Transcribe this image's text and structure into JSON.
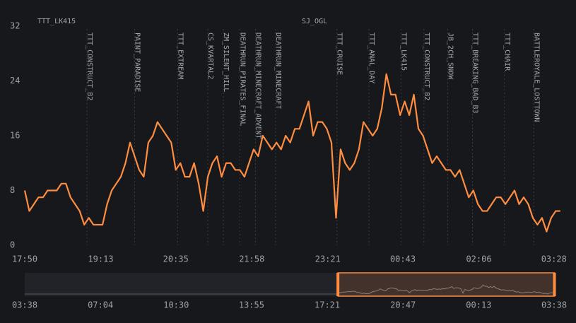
{
  "chart_data": {
    "type": "line",
    "top_labels": [
      "TTT_LK415",
      "SJ_OGL"
    ],
    "x": [
      "17:50",
      "17:55",
      "18:00",
      "18:05",
      "18:10",
      "18:15",
      "18:20",
      "18:25",
      "18:30",
      "18:35",
      "18:40",
      "18:45",
      "18:50",
      "18:55",
      "19:00",
      "19:05",
      "19:10",
      "19:15",
      "19:20",
      "19:25",
      "19:30",
      "19:35",
      "19:40",
      "19:45",
      "19:50",
      "19:55",
      "20:00",
      "20:05",
      "20:10",
      "20:15",
      "20:20",
      "20:25",
      "20:30",
      "20:35",
      "20:40",
      "20:45",
      "20:50",
      "20:55",
      "21:00",
      "21:05",
      "21:10",
      "21:15",
      "21:20",
      "21:25",
      "21:30",
      "21:35",
      "21:40",
      "21:45",
      "21:50",
      "21:55",
      "22:00",
      "22:05",
      "22:10",
      "22:15",
      "22:20",
      "22:25",
      "22:30",
      "22:35",
      "22:40",
      "22:45",
      "22:50",
      "22:55",
      "23:00",
      "23:05",
      "23:10",
      "23:15",
      "23:20",
      "23:25",
      "23:30",
      "23:35",
      "23:40",
      "23:45",
      "23:50",
      "23:55",
      "00:00",
      "00:05",
      "00:10",
      "00:15",
      "00:20",
      "00:25",
      "00:30",
      "00:35",
      "00:40",
      "00:45",
      "00:50",
      "00:55",
      "01:00",
      "01:05",
      "01:10",
      "01:15",
      "01:20",
      "01:25",
      "01:30",
      "01:35",
      "01:40",
      "01:45",
      "01:50",
      "01:55",
      "02:00",
      "02:05",
      "02:10",
      "02:15",
      "02:20",
      "02:25",
      "02:30",
      "02:35",
      "02:40",
      "02:45",
      "02:50",
      "02:55",
      "03:00",
      "03:05",
      "03:10",
      "03:15",
      "03:20",
      "03:25",
      "03:30",
      "03:35"
    ],
    "series": [
      {
        "color": "#ff8d3f",
        "values": [
          8,
          5,
          6,
          7,
          7,
          8,
          8,
          8,
          9,
          9,
          7,
          6,
          5,
          3,
          4,
          3,
          3,
          3,
          6,
          8,
          9,
          10,
          12,
          15,
          13,
          11,
          10,
          15,
          16,
          18,
          17,
          16,
          15,
          11,
          12,
          10,
          10,
          12,
          9,
          5,
          10,
          12,
          13,
          10,
          12,
          12,
          11,
          11,
          10,
          12,
          14,
          13,
          16,
          15,
          14,
          15,
          14,
          16,
          15,
          17,
          17,
          19,
          21,
          16,
          18,
          18,
          17,
          15,
          4,
          14,
          12,
          11,
          12,
          14,
          18,
          17,
          16,
          17,
          20,
          25,
          22,
          22,
          19,
          21,
          19,
          22,
          17,
          16,
          14,
          12,
          13,
          12,
          11,
          11,
          10,
          11,
          9,
          7,
          8,
          6,
          5,
          5,
          6,
          7,
          7,
          6,
          7,
          8,
          6,
          7,
          6,
          4,
          3,
          4,
          2,
          4,
          5,
          5
        ]
      }
    ],
    "xlim": [
      "17:50",
      "03:39"
    ],
    "xticks": [
      "17:50",
      "19:13",
      "20:35",
      "21:58",
      "23:21",
      "00:43",
      "02:06",
      "03:28"
    ],
    "ylim": [
      0,
      32
    ],
    "yticks": [
      0,
      8,
      16,
      24,
      32
    ],
    "annotations": [
      {
        "x": "18:58",
        "label": "TTT_CONSTRUCT_B2"
      },
      {
        "x": "19:50",
        "label": "PAINT_PARADISE"
      },
      {
        "x": "20:37",
        "label": "TTT_EXTREAM"
      },
      {
        "x": "21:10",
        "label": "CS_KVARTAL2"
      },
      {
        "x": "21:27",
        "label": "ZM_SILENT_HILL"
      },
      {
        "x": "21:45",
        "label": "DEATHRUN_PIRATES_FINAL"
      },
      {
        "x": "22:02",
        "label": "DEATHRUN_MINECRAFT_ADVENT"
      },
      {
        "x": "22:24",
        "label": "DEATHRUN_MINECRAFT"
      },
      {
        "x": "23:31",
        "label": "TTT_CRUISE"
      },
      {
        "x": "00:06",
        "label": "TTT_ANAL_DAY"
      },
      {
        "x": "00:41",
        "label": "TTT_LK415"
      },
      {
        "x": "01:06",
        "label": "TTT_CONSTRUCT_B2"
      },
      {
        "x": "01:32",
        "label": "JB_2CH_SNOW"
      },
      {
        "x": "01:59",
        "label": "TTT_BREAKING_BAD_B3"
      },
      {
        "x": "02:34",
        "label": "TTT_CHAIR"
      },
      {
        "x": "03:06",
        "label": "BATTLEROYALE_LOSTTOWN"
      }
    ],
    "navigator": {
      "xlim": [
        "03:38",
        "03:38"
      ],
      "xticks": [
        "03:38",
        "07:04",
        "10:30",
        "13:55",
        "17:21",
        "20:47",
        "00:13",
        "03:38"
      ]
    }
  }
}
